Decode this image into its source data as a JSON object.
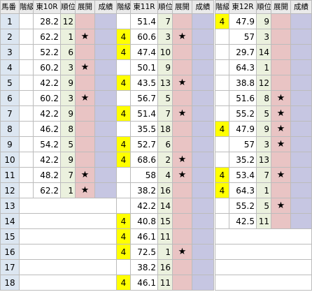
{
  "header": {
    "uma": "馬番",
    "kaikyu": "階級",
    "races": [
      "東10R",
      "東11R",
      "東12R"
    ],
    "juni": "順位",
    "tenkai": "展開",
    "seiseki": "成績"
  },
  "star_symbol": "★",
  "colors": {
    "kaikyu_highlight": "#ffff00",
    "number_col": "#dce6f1",
    "rank_col": "#ebf1de",
    "tenkai_col": "#e9c4c4",
    "seiseki_col": "#c6c6e2",
    "header_bg": "#eaeaea"
  },
  "rows": [
    {
      "uma": "1",
      "races": [
        {
          "k": "",
          "o": "28.2",
          "r": "12",
          "s": false
        },
        {
          "k": "",
          "o": "51.4",
          "r": "7",
          "s": false
        },
        {
          "k": "4",
          "o": "47.9",
          "r": "9",
          "s": false
        }
      ]
    },
    {
      "uma": "2",
      "races": [
        {
          "k": "",
          "o": "62.2",
          "r": "1",
          "s": true
        },
        {
          "k": "4",
          "o": "60.6",
          "r": "3",
          "s": true
        },
        {
          "k": "",
          "o": "57",
          "r": "3",
          "s": false
        }
      ]
    },
    {
      "uma": "3",
      "races": [
        {
          "k": "",
          "o": "52.2",
          "r": "6",
          "s": false
        },
        {
          "k": "4",
          "o": "47.4",
          "r": "10",
          "s": false
        },
        {
          "k": "",
          "o": "29.7",
          "r": "14",
          "s": false
        }
      ]
    },
    {
      "uma": "4",
      "races": [
        {
          "k": "",
          "o": "60.2",
          "r": "3",
          "s": true
        },
        {
          "k": "",
          "o": "50.1",
          "r": "9",
          "s": false
        },
        {
          "k": "",
          "o": "64.3",
          "r": "1",
          "s": false
        }
      ]
    },
    {
      "uma": "5",
      "races": [
        {
          "k": "",
          "o": "42.2",
          "r": "9",
          "s": false
        },
        {
          "k": "4",
          "o": "43.5",
          "r": "13",
          "s": true
        },
        {
          "k": "",
          "o": "38.8",
          "r": "12",
          "s": false
        }
      ]
    },
    {
      "uma": "6",
      "races": [
        {
          "k": "",
          "o": "60.2",
          "r": "3",
          "s": true
        },
        {
          "k": "",
          "o": "56.7",
          "r": "5",
          "s": false
        },
        {
          "k": "",
          "o": "51.6",
          "r": "8",
          "s": true
        }
      ]
    },
    {
      "uma": "7",
      "races": [
        {
          "k": "",
          "o": "42.2",
          "r": "9",
          "s": false
        },
        {
          "k": "4",
          "o": "51.4",
          "r": "7",
          "s": true
        },
        {
          "k": "",
          "o": "55.2",
          "r": "5",
          "s": true
        }
      ]
    },
    {
      "uma": "8",
      "races": [
        {
          "k": "",
          "o": "46.2",
          "r": "8",
          "s": false
        },
        {
          "k": "",
          "o": "35.5",
          "r": "18",
          "s": false
        },
        {
          "k": "4",
          "o": "47.9",
          "r": "9",
          "s": true
        }
      ]
    },
    {
      "uma": "9",
      "races": [
        {
          "k": "",
          "o": "54.2",
          "r": "5",
          "s": false
        },
        {
          "k": "4",
          "o": "52.7",
          "r": "6",
          "s": false
        },
        {
          "k": "",
          "o": "57",
          "r": "3",
          "s": true
        }
      ]
    },
    {
      "uma": "10",
      "races": [
        {
          "k": "",
          "o": "42.2",
          "r": "9",
          "s": false
        },
        {
          "k": "4",
          "o": "68.6",
          "r": "2",
          "s": true
        },
        {
          "k": "",
          "o": "35.2",
          "r": "13",
          "s": false
        }
      ]
    },
    {
      "uma": "11",
      "races": [
        {
          "k": "",
          "o": "48.2",
          "r": "7",
          "s": true
        },
        {
          "k": "",
          "o": "58",
          "r": "4",
          "s": true
        },
        {
          "k": "4",
          "o": "53.4",
          "r": "7",
          "s": true
        }
      ]
    },
    {
      "uma": "12",
      "races": [
        {
          "k": "",
          "o": "62.2",
          "r": "1",
          "s": true
        },
        {
          "k": "",
          "o": "38.2",
          "r": "16",
          "s": false
        },
        {
          "k": "4",
          "o": "64.3",
          "r": "1",
          "s": false
        }
      ]
    },
    {
      "uma": "13",
      "races": [
        null,
        {
          "k": "",
          "o": "42.2",
          "r": "14",
          "s": false
        },
        {
          "k": "",
          "o": "55.2",
          "r": "5",
          "s": true
        }
      ]
    },
    {
      "uma": "14",
      "races": [
        null,
        {
          "k": "4",
          "o": "40.8",
          "r": "15",
          "s": false
        },
        {
          "k": "",
          "o": "42.5",
          "r": "11",
          "s": false
        }
      ]
    },
    {
      "uma": "15",
      "races": [
        null,
        {
          "k": "4",
          "o": "46.1",
          "r": "11",
          "s": false
        },
        null
      ]
    },
    {
      "uma": "16",
      "races": [
        null,
        {
          "k": "4",
          "o": "72.5",
          "r": "1",
          "s": true
        },
        null
      ]
    },
    {
      "uma": "17",
      "races": [
        null,
        {
          "k": "",
          "o": "38.2",
          "r": "16",
          "s": false
        },
        null
      ]
    },
    {
      "uma": "18",
      "races": [
        null,
        {
          "k": "4",
          "o": "46.1",
          "r": "11",
          "s": false
        },
        null
      ]
    }
  ]
}
